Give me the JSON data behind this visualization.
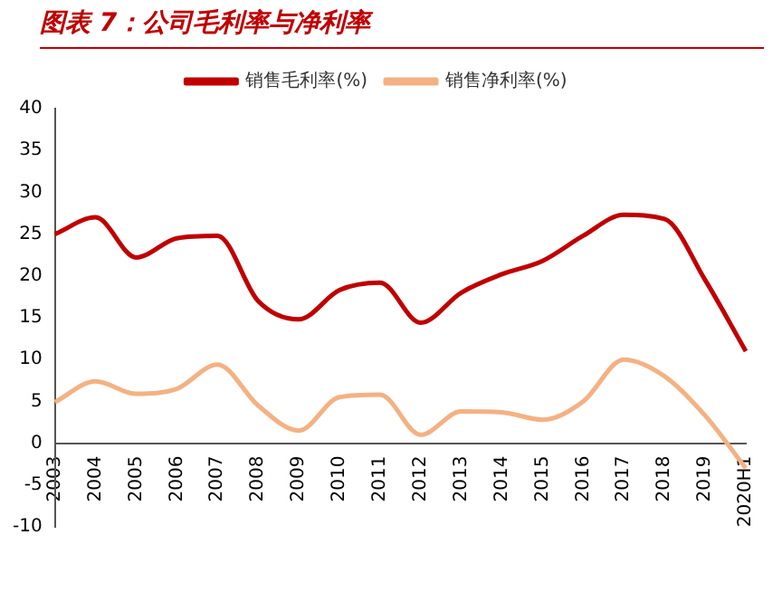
{
  "chart_data": {
    "type": "line",
    "title": "图表 7：公司毛利率与净利率",
    "categories": [
      "2003",
      "2004",
      "2005",
      "2006",
      "2007",
      "2008",
      "2009",
      "2010",
      "2011",
      "2012",
      "2013",
      "2014",
      "2015",
      "2016",
      "2017",
      "2018",
      "2019",
      "2020H1"
    ],
    "series": [
      {
        "name": "销售毛利率(%)",
        "color": "#c00000",
        "values": [
          25,
          27,
          22.2,
          24.5,
          24.8,
          17,
          14.8,
          18.3,
          19.2,
          14.4,
          18,
          20.2,
          21.8,
          24.8,
          27.3,
          26.8,
          19.5,
          11
        ]
      },
      {
        "name": "销售净利率(%)",
        "color": "#f4b183",
        "values": [
          4.9,
          7.4,
          5.9,
          6.5,
          9.4,
          4.5,
          1.5,
          5.5,
          5.8,
          1,
          3.8,
          3.7,
          2.8,
          5,
          10,
          8,
          3.3,
          -3
        ]
      }
    ],
    "ylim": [
      -10,
      40
    ],
    "yticks": [
      -10,
      -5,
      0,
      5,
      10,
      15,
      20,
      25,
      30,
      35,
      40
    ],
    "grid": false,
    "legend": "top",
    "marker": "none",
    "line_style": "solid"
  }
}
